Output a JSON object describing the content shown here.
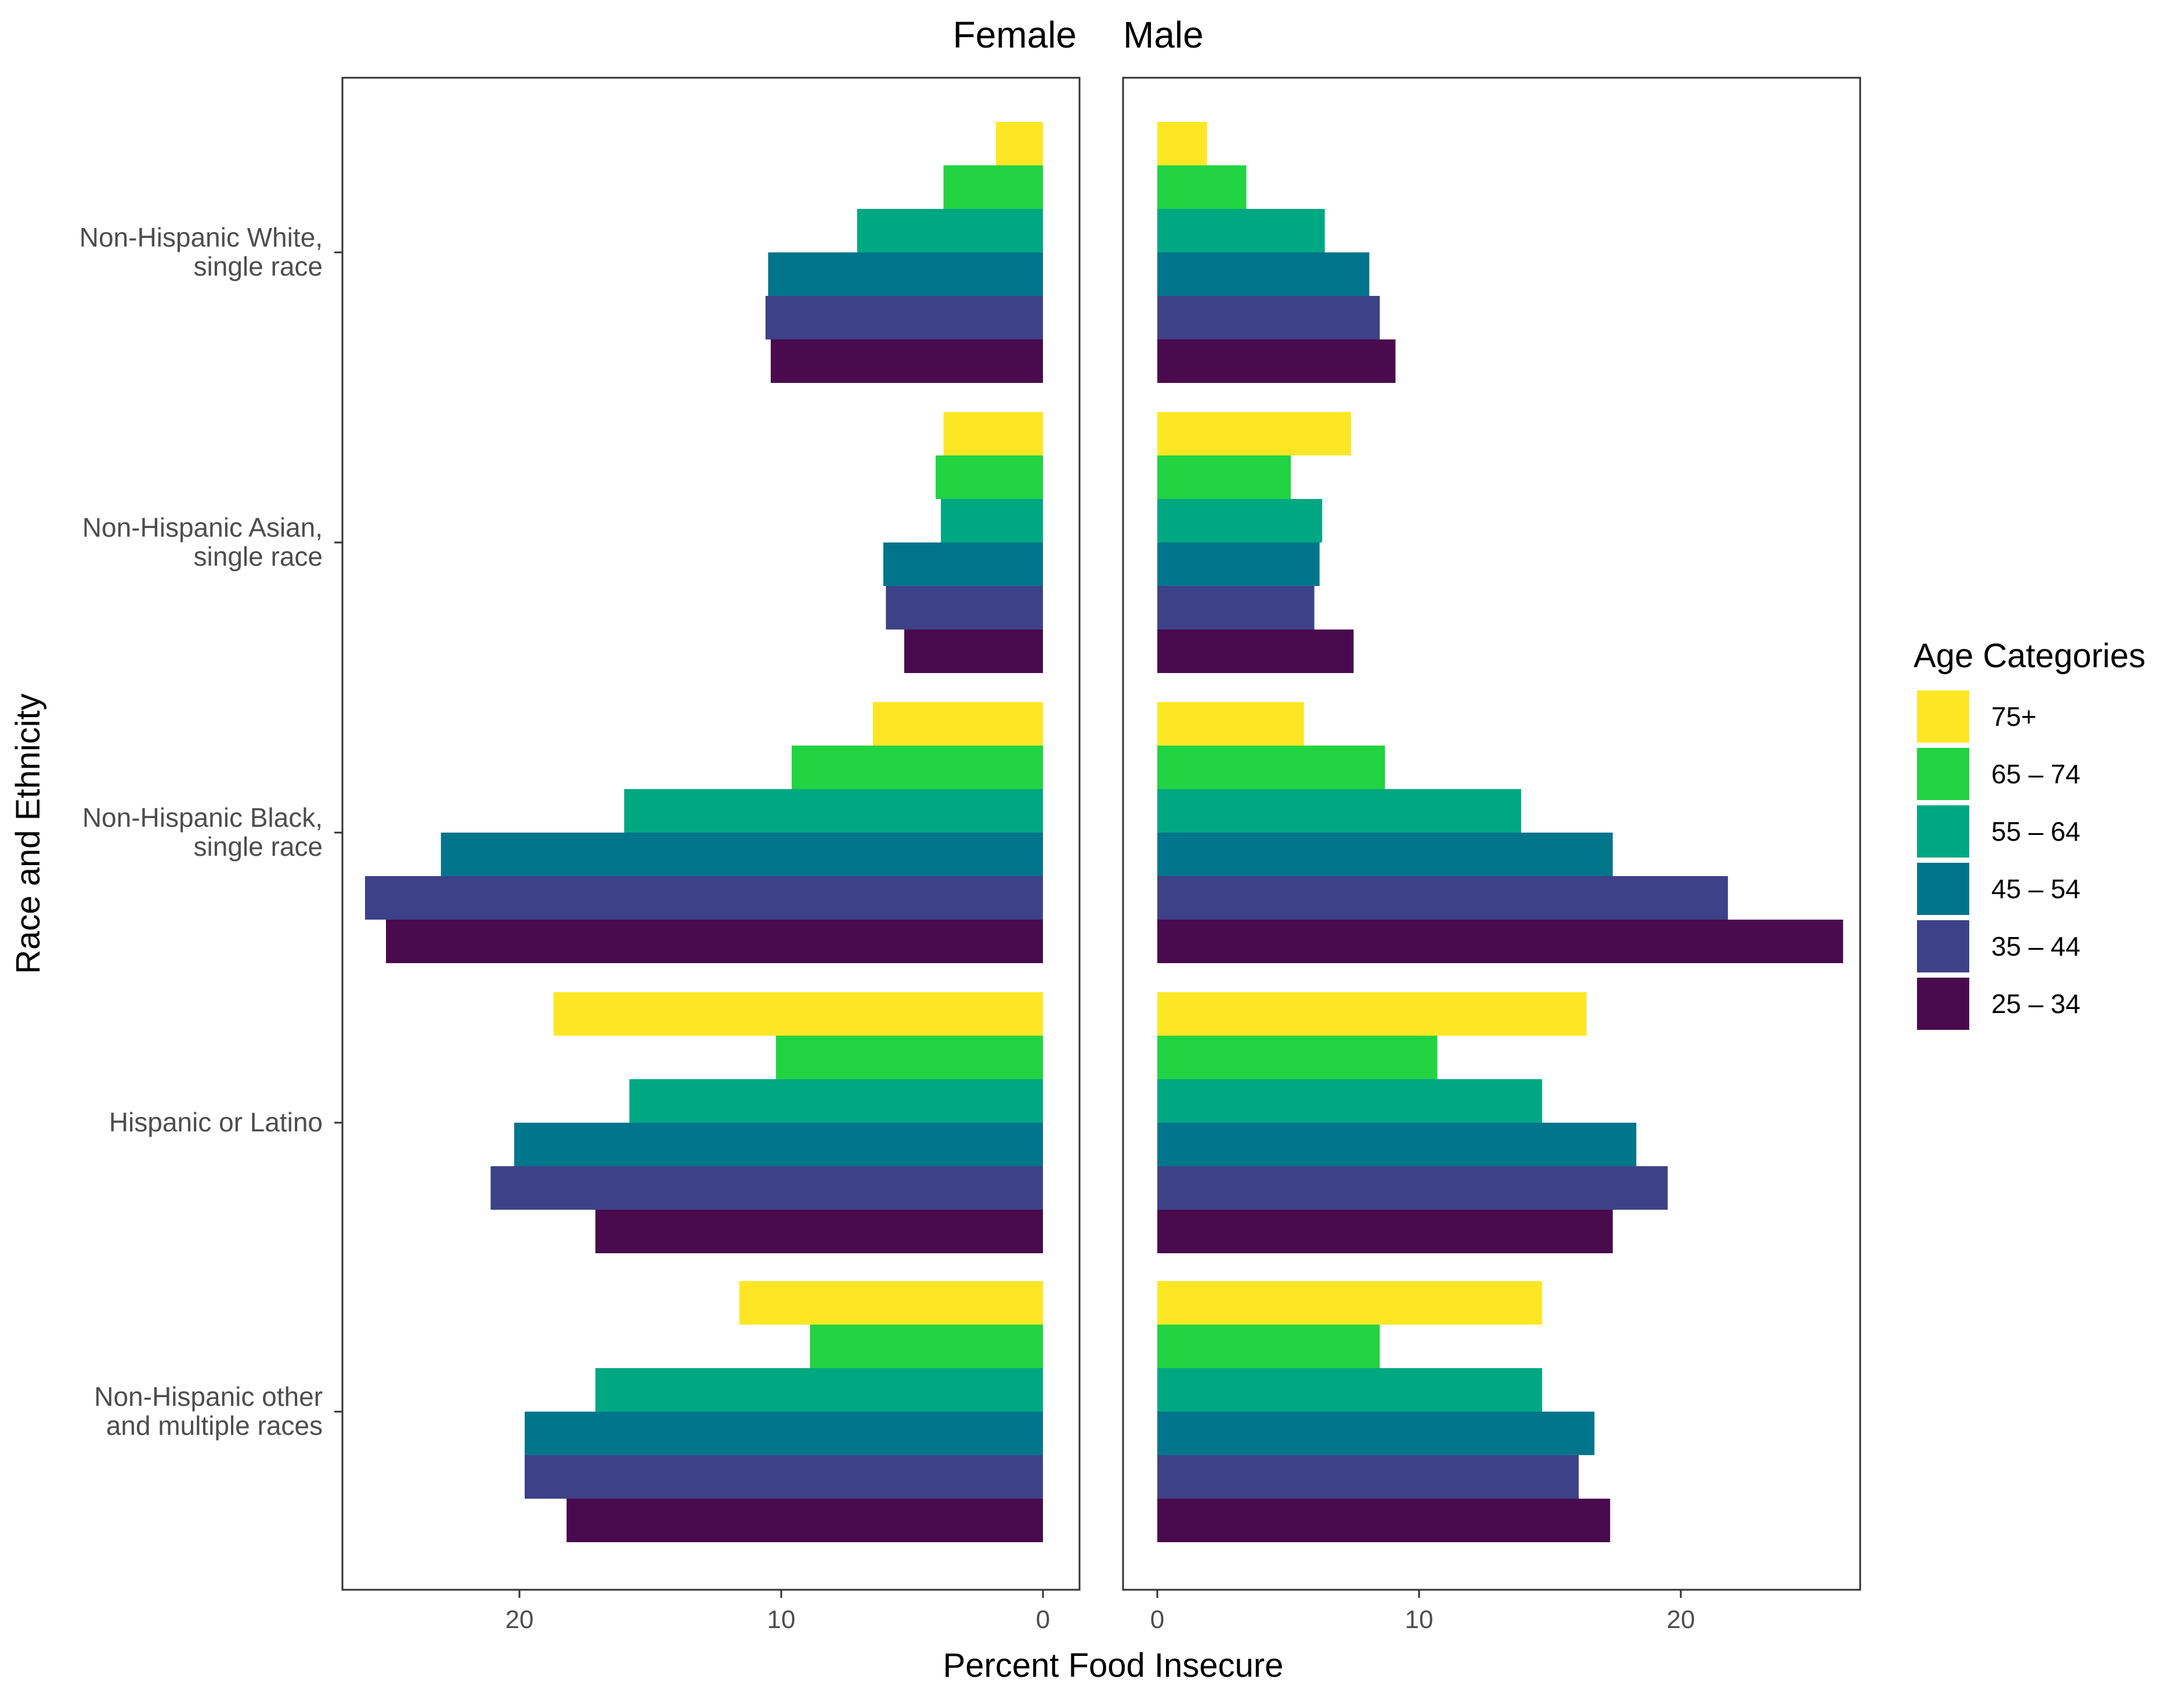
{
  "chart_data": {
    "type": "bar",
    "orientation": "horizontal",
    "layout": "back-to-back facets",
    "xlabel": "Percent Food Insecure",
    "ylabel": "Race and Ethnicity",
    "facets": [
      "Female",
      "Male"
    ],
    "xlim": [
      0,
      27
    ],
    "x_ticks": [
      0,
      10,
      20
    ],
    "categories": [
      [
        "Non-Hispanic White,",
        "single race"
      ],
      [
        "Non-Hispanic Asian,",
        "single race"
      ],
      [
        "Non-Hispanic Black,",
        "single race"
      ],
      [
        "Hispanic or Latino"
      ],
      [
        "Non-Hispanic other",
        "and multiple races"
      ]
    ],
    "legend": {
      "title": "Age Categories",
      "entries": [
        "75+",
        "65 – 74",
        "55 – 64",
        "45 – 54",
        "35 – 44",
        "25 – 34"
      ]
    },
    "series": [
      {
        "name": "75+",
        "color": "#FDE725",
        "female": [
          1.8,
          3.8,
          6.5,
          18.7,
          11.6
        ],
        "male": [
          1.9,
          7.4,
          5.6,
          16.4,
          14.7
        ]
      },
      {
        "name": "65 – 74",
        "color": "#22D342",
        "female": [
          3.8,
          4.1,
          9.6,
          10.2,
          8.9
        ],
        "male": [
          3.4,
          5.1,
          8.7,
          10.7,
          8.5
        ]
      },
      {
        "name": "55 – 64",
        "color": "#00A882",
        "female": [
          7.1,
          3.9,
          16.0,
          15.8,
          17.1
        ],
        "male": [
          6.4,
          6.3,
          13.9,
          14.7,
          14.7
        ]
      },
      {
        "name": "45 – 54",
        "color": "#00758C",
        "female": [
          10.5,
          6.1,
          23.0,
          20.2,
          19.8
        ],
        "male": [
          8.1,
          6.2,
          17.4,
          18.3,
          16.7
        ]
      },
      {
        "name": "35 – 44",
        "color": "#3D4188",
        "female": [
          10.6,
          6.0,
          25.9,
          21.1,
          19.8
        ],
        "male": [
          8.5,
          6.0,
          21.8,
          19.5,
          16.1
        ]
      },
      {
        "name": "25 – 34",
        "color": "#490A4E",
        "female": [
          10.4,
          5.3,
          25.1,
          17.1,
          18.2
        ],
        "male": [
          9.1,
          7.5,
          26.2,
          17.4,
          17.3
        ]
      }
    ]
  }
}
